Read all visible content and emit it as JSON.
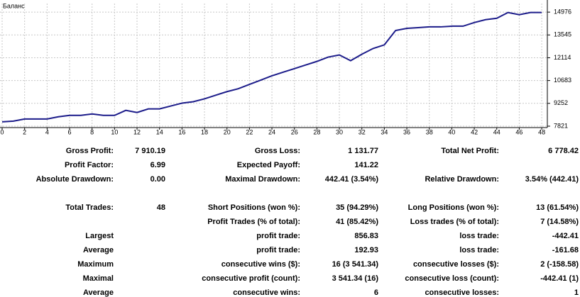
{
  "chart_data": {
    "type": "line",
    "title": "Баланс",
    "x": [
      0,
      1,
      2,
      3,
      4,
      5,
      6,
      7,
      8,
      9,
      10,
      11,
      12,
      13,
      14,
      15,
      16,
      17,
      18,
      19,
      20,
      21,
      22,
      23,
      24,
      25,
      26,
      27,
      28,
      29,
      30,
      31,
      32,
      33,
      34,
      35,
      36,
      37,
      38,
      39,
      40,
      41,
      42,
      43,
      44,
      45,
      46,
      47,
      48
    ],
    "series": [
      {
        "name": "Баланс",
        "color": "#1c1c8a",
        "values": [
          8092,
          8137,
          8272,
          8272,
          8272,
          8408,
          8498,
          8498,
          8588,
          8498,
          8498,
          8814,
          8679,
          8904,
          8904,
          9085,
          9265,
          9356,
          9536,
          9762,
          9988,
          10168,
          10439,
          10710,
          10981,
          11207,
          11432,
          11658,
          11884,
          12155,
          12290,
          11929,
          12335,
          12696,
          12922,
          13825,
          13960,
          14005,
          14050,
          14050,
          14095,
          14095,
          14321,
          14502,
          14592,
          14953,
          14818,
          14953,
          14953
        ]
      }
    ],
    "xlim": [
      -0.19,
      48.5
    ],
    "ylim": [
      7731,
      15515
    ],
    "xticks": [
      0,
      2,
      4,
      6,
      8,
      10,
      12,
      14,
      16,
      18,
      20,
      22,
      24,
      26,
      28,
      30,
      32,
      34,
      36,
      38,
      40,
      42,
      44,
      46,
      48
    ],
    "yticks": [
      7821,
      9252,
      10683,
      12114,
      13545,
      14976
    ],
    "grid": true
  },
  "table": {
    "rows": [
      [
        "Gross Profit:",
        "7 910.19",
        "Gross Loss:",
        "1 131.77",
        "Total Net Profit:",
        "6 778.42"
      ],
      [
        "Profit Factor:",
        "6.99",
        "Expected Payoff:",
        "141.22",
        null,
        null
      ],
      [
        "Absolute Drawdown:",
        "0.00",
        "Maximal Drawdown:",
        "442.41 (3.54%)",
        "Relative Drawdown:",
        "3.54% (442.41)"
      ],
      [
        "Total Trades:",
        "48",
        "Short Positions (won %):",
        "35 (94.29%)",
        "Long Positions (won %):",
        "13 (61.54%)"
      ],
      [
        null,
        null,
        "Profit Trades (% of total):",
        "41 (85.42%)",
        "Loss trades (% of total):",
        "7 (14.58%)"
      ],
      [
        "Largest",
        null,
        "profit trade:",
        "856.83",
        "loss trade:",
        "-442.41"
      ],
      [
        "Average",
        null,
        "profit trade:",
        "192.93",
        "loss trade:",
        "-161.68"
      ],
      [
        "Maximum",
        null,
        "consecutive wins ($):",
        "16 (3 541.34)",
        "consecutive losses ($):",
        "2 (-158.58)"
      ],
      [
        "Maximal",
        null,
        "consecutive profit (count):",
        "3 541.34 (16)",
        "consecutive loss (count):",
        "-442.41 (1)"
      ],
      [
        "Average",
        null,
        "consecutive wins:",
        "6",
        "consecutive losses:",
        "1"
      ]
    ]
  }
}
